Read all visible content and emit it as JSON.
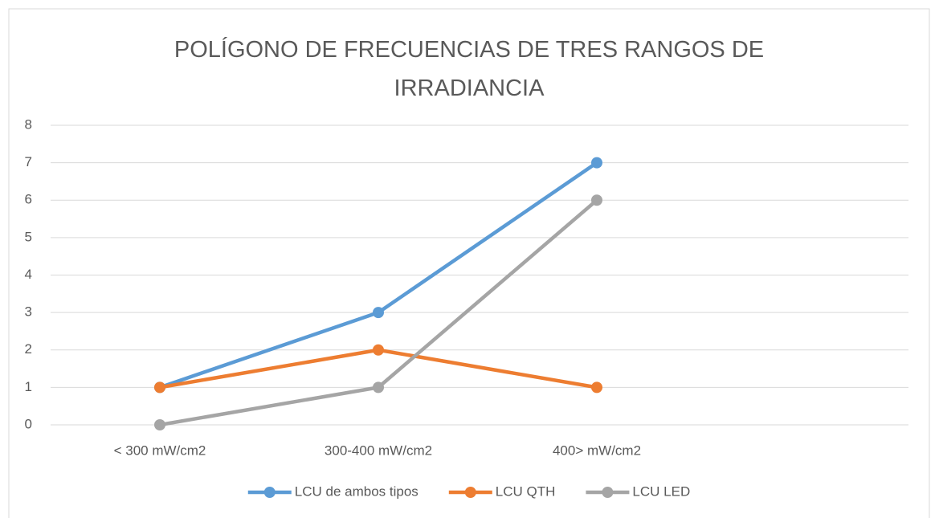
{
  "chart_data": {
    "type": "line",
    "title": "POLÍGONO DE FRECUENCIAS DE TRES RANGOS DE IRRADIANCIA",
    "categories": [
      "< 300 mW/cm2",
      "300-400 mW/cm2",
      "400> mW/cm2",
      null
    ],
    "series": [
      {
        "name": "LCU de ambos tipos",
        "color": "#5b9bd5",
        "values": [
          1,
          3,
          7,
          null
        ]
      },
      {
        "name": "LCU QTH",
        "color": "#ed7d31",
        "values": [
          1,
          2,
          1,
          null
        ]
      },
      {
        "name": "LCU LED",
        "color": "#a5a5a5",
        "values": [
          0,
          1,
          6,
          null
        ]
      }
    ],
    "ylim": [
      0,
      8
    ],
    "yticks": [
      0,
      1,
      2,
      3,
      4,
      5,
      6,
      7,
      8
    ],
    "grid": true,
    "legend": "bottom"
  }
}
